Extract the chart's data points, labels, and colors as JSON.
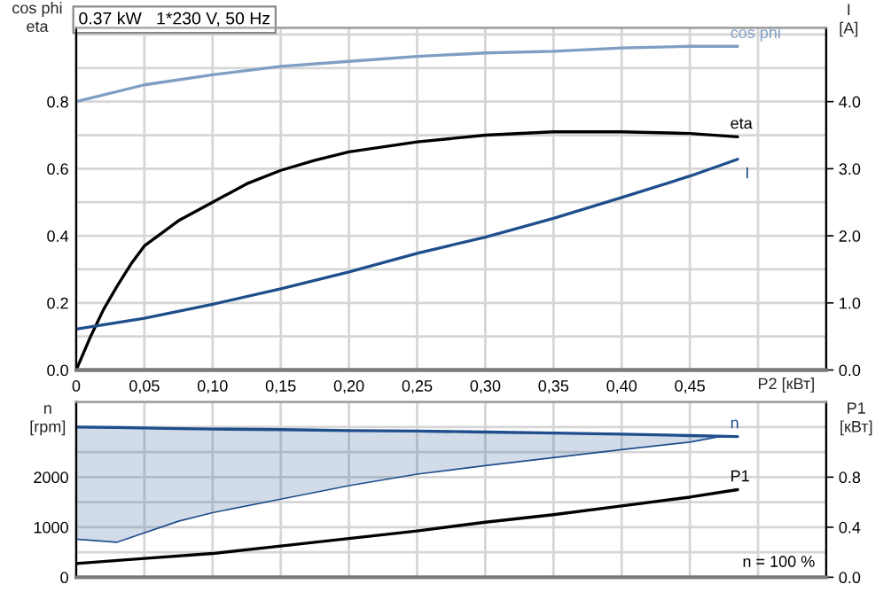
{
  "chart_data": [
    {
      "type": "line",
      "title": "0.37 kW   1*230 V, 50 Hz",
      "xlabel": "P2 [кВт]",
      "ylabel": "cos phi\neta",
      "y2label": "I\n[A]",
      "xlim": [
        0,
        0.55
      ],
      "xticks": [
        {
          "value": 0,
          "label": "0"
        },
        {
          "value": 0.05,
          "label": "0,05"
        },
        {
          "value": 0.1,
          "label": "0,10"
        },
        {
          "value": 0.15,
          "label": "0,15"
        },
        {
          "value": 0.2,
          "label": "0,20"
        },
        {
          "value": 0.25,
          "label": "0,25"
        },
        {
          "value": 0.3,
          "label": "0,30"
        },
        {
          "value": 0.35,
          "label": "0,35"
        },
        {
          "value": 0.4,
          "label": "0,40"
        },
        {
          "value": 0.45,
          "label": "0,45"
        },
        {
          "value": 0.5,
          "label": null
        }
      ],
      "ylim": [
        0,
        1.02
      ],
      "yticks": [
        {
          "value": 0,
          "label": "0.0"
        },
        {
          "value": 0.1,
          "label": null
        },
        0.2,
        {
          "value": 0.3,
          "label": null
        },
        0.4,
        {
          "value": 0.5,
          "label": null
        },
        0.6,
        {
          "value": 0.7,
          "label": null
        },
        0.8,
        {
          "value": 0.9,
          "label": null
        },
        {
          "value": 1.0,
          "label": null
        }
      ],
      "y2lim": [
        0,
        5.1
      ],
      "y2ticks": [
        {
          "value": 0,
          "label": "0.0"
        },
        {
          "value": 1,
          "label": "1.0"
        },
        {
          "value": 2,
          "label": "2.0"
        },
        {
          "value": 3,
          "label": "3.0"
        },
        {
          "value": 4,
          "label": "4.0"
        }
      ],
      "grid": true,
      "series": [
        {
          "name": "cos phi",
          "color": "#7f9ec4",
          "x": [
            0,
            0.05,
            0.1,
            0.15,
            0.2,
            0.25,
            0.3,
            0.35,
            0.4,
            0.45,
            0.485
          ],
          "values": [
            0.8,
            0.85,
            0.88,
            0.905,
            0.92,
            0.935,
            0.945,
            0.95,
            0.96,
            0.965,
            0.965
          ]
        },
        {
          "name": "eta",
          "color": "#000000",
          "x": [
            0,
            0.01,
            0.02,
            0.03,
            0.04,
            0.05,
            0.06,
            0.075,
            0.1,
            0.125,
            0.15,
            0.175,
            0.2,
            0.25,
            0.3,
            0.35,
            0.4,
            0.45,
            0.485
          ],
          "values": [
            0,
            0.095,
            0.18,
            0.25,
            0.315,
            0.37,
            0.4,
            0.445,
            0.5,
            0.555,
            0.595,
            0.625,
            0.65,
            0.68,
            0.7,
            0.71,
            0.71,
            0.705,
            0.695
          ]
        },
        {
          "name": "I",
          "color": "#1f4e8c",
          "axis": "y2",
          "x": [
            0,
            0.05,
            0.1,
            0.15,
            0.2,
            0.25,
            0.3,
            0.35,
            0.4,
            0.45,
            0.485
          ],
          "values": [
            0.61,
            0.77,
            0.98,
            1.21,
            1.46,
            1.74,
            1.98,
            2.26,
            2.57,
            2.89,
            3.14
          ]
        }
      ]
    },
    {
      "type": "line",
      "ylabel": "n\n[rpm]",
      "y2label": "P1\n[кВт]",
      "tick_labels": "y",
      "xlim": [
        0,
        0.55
      ],
      "xticks": [
        0,
        0.05,
        0.1,
        0.15,
        0.2,
        0.25,
        0.3,
        0.35,
        0.4,
        0.45,
        0.5
      ],
      "ylim": [
        0,
        3500
      ],
      "yticks": [
        0,
        {
          "value": 500,
          "label": null
        },
        1000,
        {
          "value": 1500,
          "label": null
        },
        2000,
        {
          "value": 2500,
          "label": null
        },
        {
          "value": 3000,
          "label": null
        }
      ],
      "y2lim": [
        0,
        1.4
      ],
      "y2ticks": [
        {
          "value": 0,
          "label": "0.0"
        },
        0.4,
        0.8
      ],
      "grid": true,
      "annotations": [
        "n = 100 %"
      ],
      "series": [
        {
          "name": "n",
          "color": "#1f4e8c",
          "x": [
            0,
            0.03,
            0.075,
            0.1,
            0.15,
            0.2,
            0.25,
            0.3,
            0.35,
            0.4,
            0.45,
            0.47,
            0.485
          ],
          "values": [
            3000,
            2990,
            2970,
            2960,
            2950,
            2930,
            2920,
            2900,
            2880,
            2860,
            2830,
            2820,
            2810
          ],
          "lower": [
            760,
            700,
            1120,
            1290,
            1560,
            1830,
            2060,
            2230,
            2390,
            2550,
            2700,
            2800,
            2810
          ],
          "upper": [
            3000,
            2990,
            2970,
            2960,
            2950,
            2930,
            2920,
            2900,
            2880,
            2860,
            2830,
            2820,
            2810
          ]
        },
        {
          "name": "P1",
          "color": "#000000",
          "axis": "y2",
          "x": [
            0,
            0.05,
            0.1,
            0.15,
            0.2,
            0.25,
            0.3,
            0.35,
            0.4,
            0.45,
            0.485
          ],
          "values": [
            0.11,
            0.15,
            0.19,
            0.25,
            0.31,
            0.37,
            0.44,
            0.5,
            0.57,
            0.64,
            0.7
          ]
        }
      ]
    }
  ]
}
